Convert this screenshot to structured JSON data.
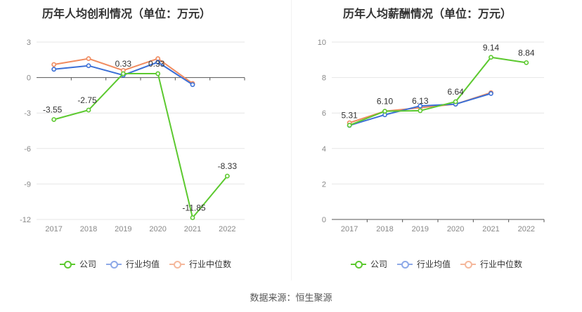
{
  "colors": {
    "company": "#5cc92f",
    "industry_avg": "#3b6fd6",
    "industry_median": "#f08b5f",
    "grid": "#e6e6e6",
    "axis": "#666666"
  },
  "legend": {
    "company": "公司",
    "industry_avg": "行业均值",
    "industry_median": "行业中位数"
  },
  "source": "数据来源：恒生聚源",
  "chart_data": [
    {
      "type": "line",
      "title": "历年人均创利情况（单位：万元）",
      "categories": [
        "2017",
        "2018",
        "2019",
        "2020",
        "2021",
        "2022"
      ],
      "yticks": [
        3,
        0,
        -3,
        -6,
        -9,
        -12
      ],
      "ylim": [
        -12,
        3
      ],
      "grid": true,
      "legend_position": "bottom",
      "series": [
        {
          "name": "公司",
          "values": [
            -3.55,
            -2.75,
            0.33,
            0.33,
            -11.85,
            -8.33
          ],
          "labels": [
            "-3.55",
            "-2.75",
            "0.33",
            "0.33",
            "-11.85",
            "-8.33"
          ]
        },
        {
          "name": "行业均值",
          "values": [
            0.7,
            1.0,
            0.2,
            1.3,
            -0.6,
            null
          ]
        },
        {
          "name": "行业中位数",
          "values": [
            1.1,
            1.6,
            0.6,
            1.6,
            -0.5,
            null
          ]
        }
      ]
    },
    {
      "type": "line",
      "title": "历年人均薪酬情况（单位：万元）",
      "categories": [
        "2017",
        "2018",
        "2019",
        "2020",
        "2021",
        "2022"
      ],
      "yticks": [
        10,
        8,
        6,
        4,
        2,
        0
      ],
      "ylim": [
        0,
        10
      ],
      "grid": true,
      "legend_position": "bottom",
      "series": [
        {
          "name": "公司",
          "values": [
            5.31,
            6.1,
            6.13,
            6.64,
            9.14,
            8.84
          ],
          "labels": [
            "5.31",
            "6.10",
            "6.13",
            "6.64",
            "9.14",
            "8.84"
          ]
        },
        {
          "name": "行业均值",
          "values": [
            5.3,
            5.9,
            6.4,
            6.5,
            7.1,
            null
          ]
        },
        {
          "name": "行业中位数",
          "values": [
            5.45,
            6.1,
            6.3,
            6.5,
            7.15,
            null
          ]
        }
      ]
    }
  ]
}
